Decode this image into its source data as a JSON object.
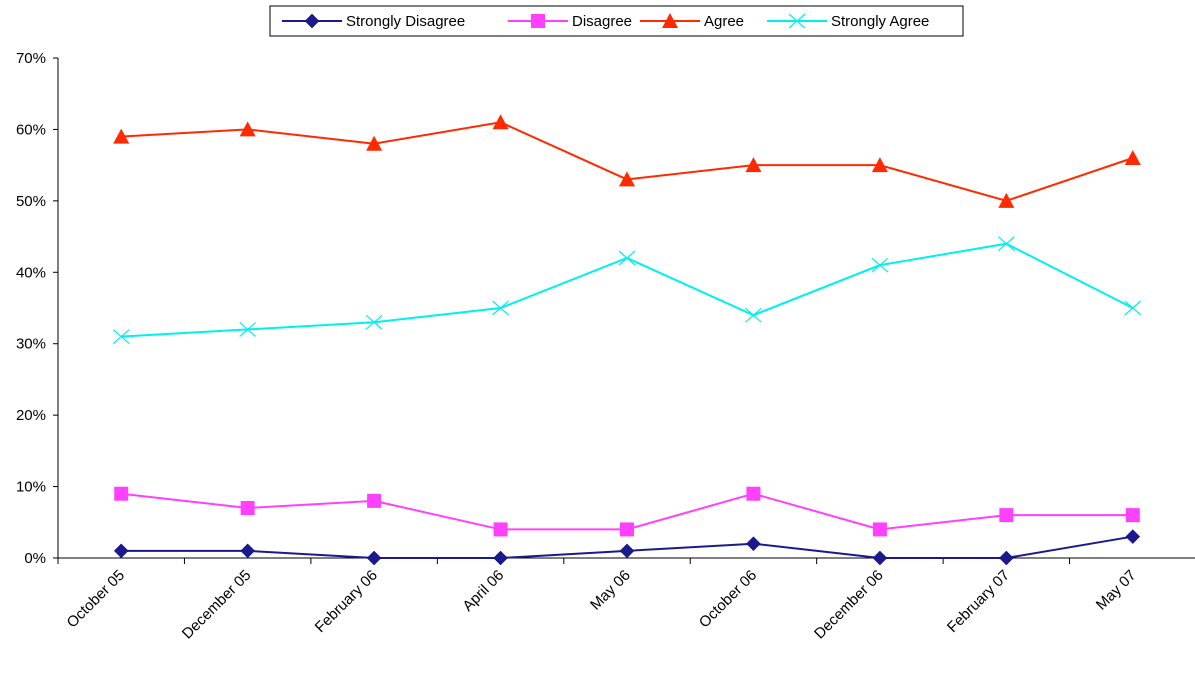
{
  "chart_data": {
    "type": "line",
    "title": "",
    "xlabel": "",
    "ylabel": "",
    "ylim": [
      0,
      70
    ],
    "y_ticks": [
      "0%",
      "10%",
      "20%",
      "30%",
      "40%",
      "50%",
      "60%",
      "70%"
    ],
    "y_tick_values": [
      0,
      10,
      20,
      30,
      40,
      50,
      60,
      70
    ],
    "grid": false,
    "legend_position": "top",
    "categories": [
      "October 05",
      "December 05",
      "February 06",
      "April 06",
      "May 06",
      "October 06",
      "December 06",
      "February 07",
      "May 07"
    ],
    "series": [
      {
        "name": "Strongly Disagree",
        "color": "#1a1a8c",
        "marker": "diamond",
        "values": [
          1,
          1,
          0,
          0,
          1,
          2,
          0,
          0,
          3
        ]
      },
      {
        "name": "Disagree",
        "color": "#ff40ff",
        "marker": "square",
        "values": [
          9,
          7,
          8,
          4,
          4,
          9,
          4,
          6,
          6
        ]
      },
      {
        "name": "Agree",
        "color": "#ff2a00",
        "marker": "triangle",
        "values": [
          59,
          60,
          58,
          61,
          53,
          55,
          55,
          50,
          56
        ]
      },
      {
        "name": "Strongly Agree",
        "color": "#00f0f0",
        "marker": "x",
        "values": [
          31,
          32,
          33,
          35,
          42,
          34,
          41,
          44,
          35
        ]
      }
    ]
  }
}
